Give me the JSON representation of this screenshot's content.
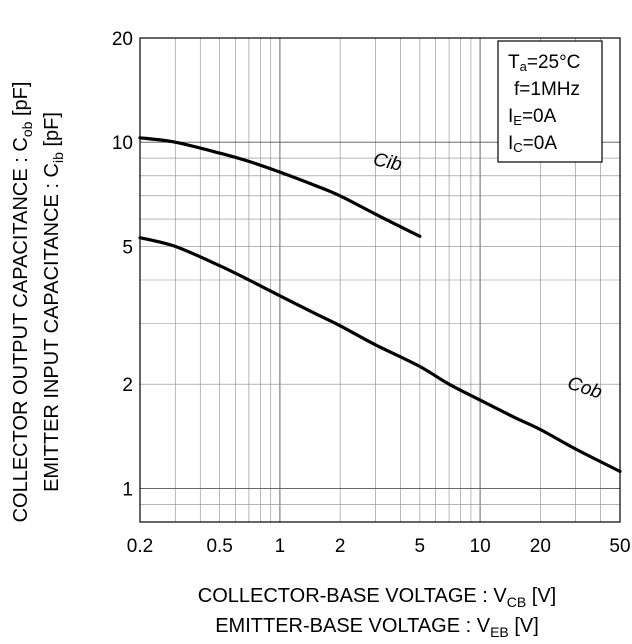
{
  "chart_data": {
    "type": "line",
    "x_scale": "log",
    "y_scale": "log",
    "xlim": [
      0.2,
      50
    ],
    "ylim": [
      0.8,
      20
    ],
    "grid": true,
    "x_ticks": [
      "0.2",
      "0.5",
      "1",
      "2",
      "5",
      "10",
      "20",
      "50"
    ],
    "y_ticks": [
      "1",
      "2",
      "5",
      "10",
      "20"
    ],
    "xlabel_lines": [
      {
        "main": "COLLECTOR-BASE VOLTAGE : V",
        "sub": "CB",
        "unit": " [V]"
      },
      {
        "main": "EMITTER-BASE VOLTAGE : V",
        "sub": "EB",
        "unit": " [V]"
      }
    ],
    "ylabel_lines": [
      {
        "main": "COLLECTOR OUTPUT CAPACITANCE : C",
        "sub": "ob",
        "unit": " [pF]"
      },
      {
        "main": "EMITTER INPUT CAPACITANCE : C",
        "sub": "ib",
        "unit": " [pF]"
      }
    ],
    "conditions": [
      {
        "main": "T",
        "sub": "a",
        "rest": "=25°C"
      },
      {
        "main": "f=1MHz",
        "sub": "",
        "rest": ""
      },
      {
        "main": "I",
        "sub": "E",
        "rest": "=0A"
      },
      {
        "main": "I",
        "sub": "C",
        "rest": "=0A"
      }
    ],
    "series": [
      {
        "name": "Cib",
        "x": [
          0.2,
          0.3,
          0.5,
          0.7,
          1,
          1.5,
          2,
          3,
          4,
          5
        ],
        "y": [
          10.3,
          10.0,
          9.3,
          8.8,
          8.2,
          7.5,
          7.0,
          6.2,
          5.7,
          5.35
        ]
      },
      {
        "name": "Cob",
        "x": [
          0.2,
          0.3,
          0.5,
          0.7,
          1,
          1.5,
          2,
          3,
          5,
          7,
          10,
          15,
          20,
          30,
          50
        ],
        "y": [
          5.3,
          5.0,
          4.4,
          4.0,
          3.6,
          3.2,
          2.95,
          2.6,
          2.25,
          2.0,
          1.8,
          1.6,
          1.48,
          1.3,
          1.12
        ]
      }
    ]
  }
}
